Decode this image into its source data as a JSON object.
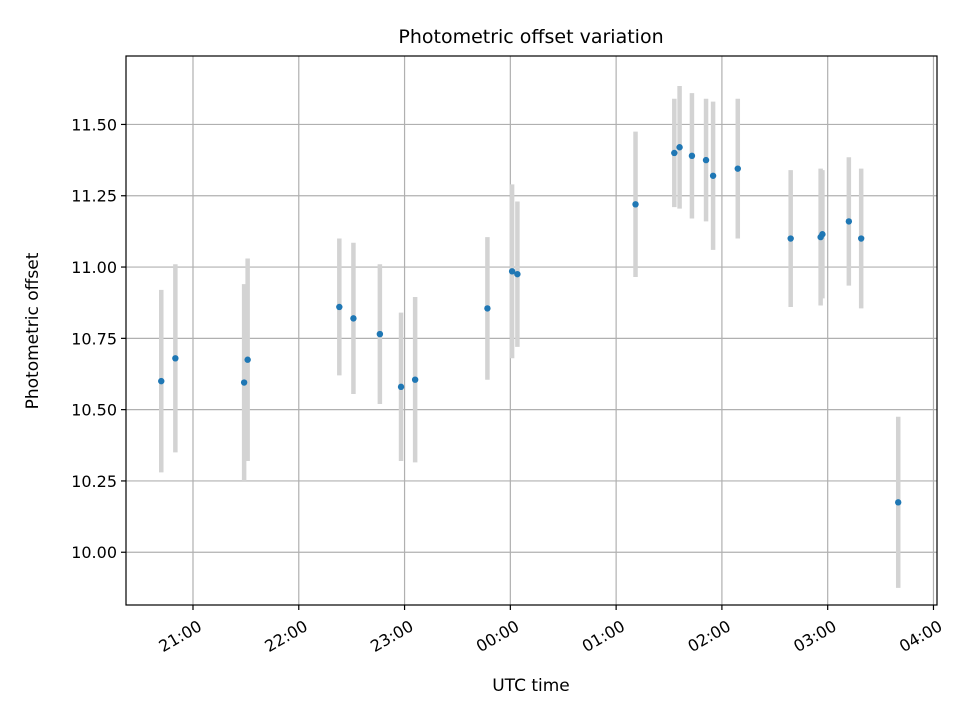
{
  "chart_data": {
    "type": "scatter",
    "title": "Photometric offset variation",
    "xlabel": "UTC time",
    "ylabel": "Photometric offset",
    "x_axis_type": "time",
    "xlim": [
      "20:22",
      "04:02"
    ],
    "ylim": [
      9.815,
      11.74
    ],
    "x_ticks": [
      "21:00",
      "22:00",
      "23:00",
      "00:00",
      "01:00",
      "02:00",
      "03:00",
      "04:00"
    ],
    "y_ticks": [
      "10.00",
      "10.25",
      "10.50",
      "10.75",
      "11.00",
      "11.25",
      "11.50"
    ],
    "grid": true,
    "legend": "none",
    "marker_color": "#1f77b4",
    "errorbar_color": "#d3d3d3",
    "points": [
      {
        "time": "20:42",
        "y": 10.6,
        "yerr": 0.32
      },
      {
        "time": "20:50",
        "y": 10.68,
        "yerr": 0.33
      },
      {
        "time": "21:29",
        "y": 10.595,
        "yerr": 0.345
      },
      {
        "time": "21:31",
        "y": 10.675,
        "yerr": 0.355
      },
      {
        "time": "22:23",
        "y": 10.86,
        "yerr": 0.24
      },
      {
        "time": "22:31",
        "y": 10.82,
        "yerr": 0.265
      },
      {
        "time": "22:46",
        "y": 10.765,
        "yerr": 0.245
      },
      {
        "time": "22:58",
        "y": 10.58,
        "yerr": 0.26
      },
      {
        "time": "23:06",
        "y": 10.605,
        "yerr": 0.29
      },
      {
        "time": "23:47",
        "y": 10.855,
        "yerr": 0.25
      },
      {
        "time": "00:01",
        "y": 10.985,
        "yerr": 0.305
      },
      {
        "time": "00:04",
        "y": 10.975,
        "yerr": 0.255
      },
      {
        "time": "01:11",
        "y": 11.22,
        "yerr": 0.255
      },
      {
        "time": "01:33",
        "y": 11.4,
        "yerr": 0.19
      },
      {
        "time": "01:36",
        "y": 11.42,
        "yerr": 0.215
      },
      {
        "time": "01:43",
        "y": 11.39,
        "yerr": 0.22
      },
      {
        "time": "01:51",
        "y": 11.375,
        "yerr": 0.215
      },
      {
        "time": "01:55",
        "y": 11.32,
        "yerr": 0.26
      },
      {
        "time": "02:09",
        "y": 11.345,
        "yerr": 0.245
      },
      {
        "time": "02:39",
        "y": 11.1,
        "yerr": 0.24
      },
      {
        "time": "02:56",
        "y": 11.105,
        "yerr": 0.24
      },
      {
        "time": "02:57",
        "y": 11.115,
        "yerr": 0.225
      },
      {
        "time": "03:12",
        "y": 11.16,
        "yerr": 0.225
      },
      {
        "time": "03:19",
        "y": 11.1,
        "yerr": 0.245
      },
      {
        "time": "03:40",
        "y": 10.175,
        "yerr": 0.3
      }
    ]
  }
}
